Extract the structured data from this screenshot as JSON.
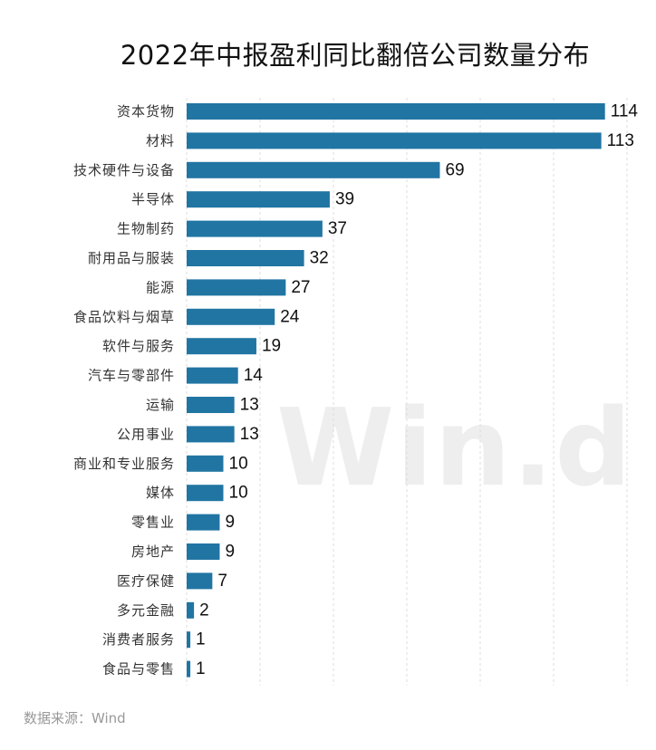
{
  "watermark": "Win.d",
  "source": "数据来源：Wind",
  "chart_data": {
    "type": "bar",
    "orientation": "horizontal",
    "title": "2022年中报盈利同比翻倍公司数量分布",
    "categories": [
      "资本货物",
      "材料",
      "技术硬件与设备",
      "半导体",
      "生物制药",
      "耐用品与服装",
      "能源",
      "食品饮料与烟草",
      "软件与服务",
      "汽车与零部件",
      "运输",
      "公用事业",
      "商业和专业服务",
      "媒体",
      "零售业",
      "房地产",
      "医疗保健",
      "多元金融",
      "消费者服务",
      "食品与零售"
    ],
    "values": [
      114,
      113,
      69,
      39,
      37,
      32,
      27,
      24,
      19,
      14,
      13,
      13,
      10,
      10,
      9,
      9,
      7,
      2,
      1,
      1
    ],
    "xlim": [
      0,
      120
    ],
    "grid": true,
    "legend": "none",
    "bar_color": "#2175a3"
  }
}
